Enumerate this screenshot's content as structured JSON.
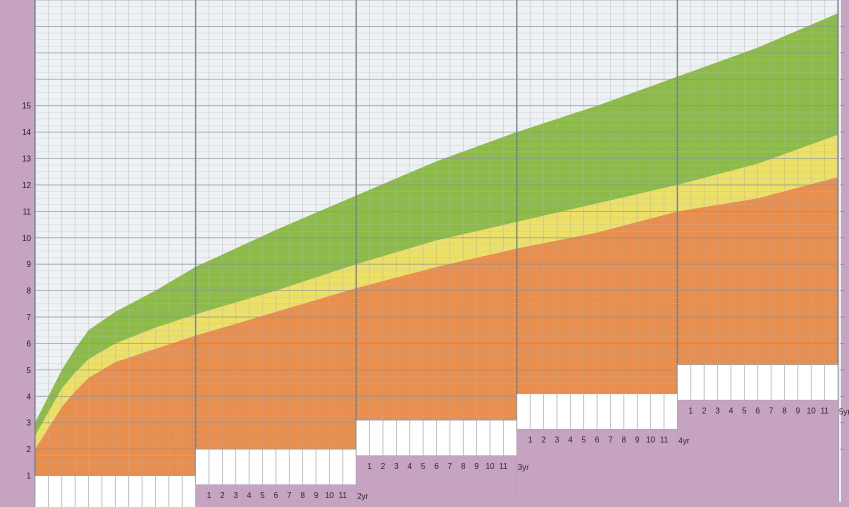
{
  "chart_data": {
    "type": "area",
    "title": "",
    "xlabel": "",
    "ylabel": "",
    "x_unit": "months",
    "xlim": [
      0,
      60
    ],
    "ylim": [
      0,
      19
    ],
    "yticks": [
      1,
      2,
      3,
      4,
      5,
      6,
      7,
      8,
      9,
      10,
      11,
      12,
      13,
      14,
      15
    ],
    "year_labels": [
      "1yr",
      "2yr",
      "3yr",
      "4yr",
      "5yr"
    ],
    "month_labels": [
      "1",
      "2",
      "3",
      "4",
      "5",
      "6",
      "7",
      "8",
      "9",
      "10",
      "11"
    ],
    "grid": true,
    "bands": [
      {
        "color": "#e98e4c",
        "x": [
          0,
          1,
          2,
          3,
          4,
          6,
          9,
          12,
          18,
          24,
          30,
          36,
          42,
          48,
          54,
          60
        ],
        "lower": [
          1.0,
          1.0,
          1.0,
          1.0,
          1.0,
          1.0,
          1.0,
          1.0,
          1.0,
          1.0,
          1.0,
          1.0,
          1.0,
          1.0,
          1.0,
          1.0
        ],
        "upper": [
          2.0,
          2.8,
          3.6,
          4.2,
          4.7,
          5.3,
          5.8,
          6.3,
          7.2,
          8.1,
          8.9,
          9.6,
          10.2,
          11.0,
          11.5,
          12.3
        ]
      },
      {
        "color": "#ede066",
        "x": [
          0,
          1,
          2,
          3,
          4,
          6,
          9,
          12,
          18,
          24,
          30,
          36,
          42,
          48,
          54,
          60
        ],
        "lower": [
          2.0,
          2.8,
          3.6,
          4.2,
          4.7,
          5.3,
          5.8,
          6.3,
          7.2,
          8.1,
          8.9,
          9.6,
          10.2,
          11.0,
          11.5,
          12.3
        ],
        "upper": [
          2.5,
          3.4,
          4.3,
          4.9,
          5.4,
          6.0,
          6.6,
          7.1,
          8.0,
          9.0,
          9.9,
          10.6,
          11.3,
          12.0,
          12.8,
          13.9
        ]
      },
      {
        "color": "#8dbb48",
        "x": [
          0,
          1,
          2,
          3,
          4,
          6,
          9,
          12,
          18,
          24,
          30,
          36,
          42,
          48,
          54,
          60
        ],
        "lower": [
          2.5,
          3.4,
          4.3,
          4.9,
          5.4,
          6.0,
          6.6,
          7.1,
          8.0,
          9.0,
          9.9,
          10.6,
          11.3,
          12.0,
          12.8,
          13.9
        ],
        "upper": [
          3.0,
          4.0,
          5.0,
          5.8,
          6.5,
          7.2,
          8.0,
          8.9,
          10.3,
          11.6,
          12.9,
          14.0,
          15.0,
          16.1,
          17.2,
          18.5
        ]
      }
    ],
    "steps": [
      {
        "year": "1yr",
        "level": 1.0
      },
      {
        "year": "2yr",
        "level": 2.0
      },
      {
        "year": "3yr",
        "level": 3.1
      },
      {
        "year": "4yr",
        "level": 4.1
      },
      {
        "year": "5yr",
        "level": 5.2
      }
    ]
  }
}
